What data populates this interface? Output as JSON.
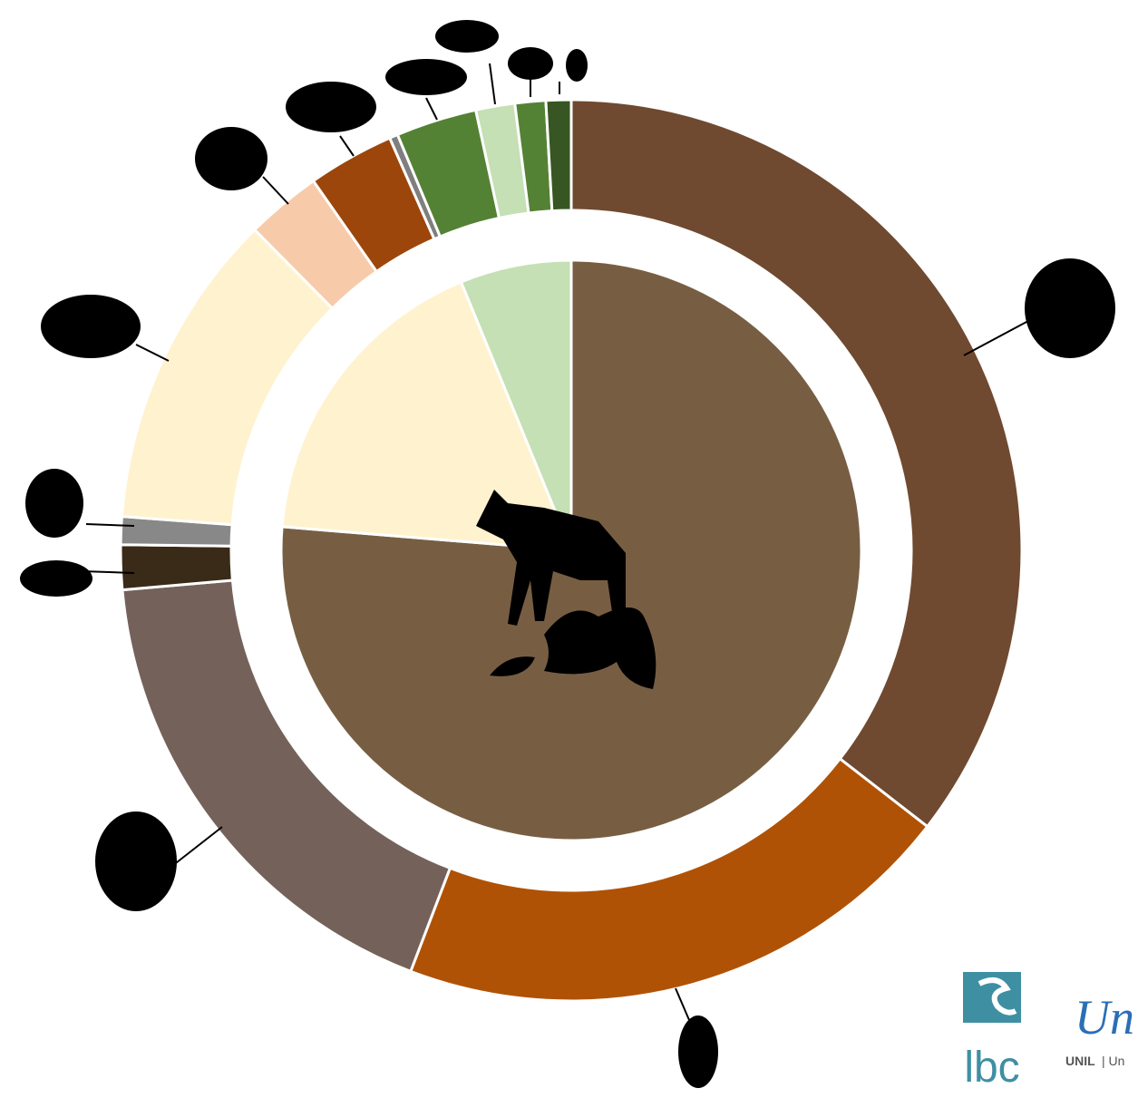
{
  "chart_data": {
    "type": "sunburst",
    "rings": [
      {
        "values": [
          76.3,
          17.5,
          6.2
        ],
        "colors": [
          "#775e43",
          "#fff2cf",
          "#c5e0b4"
        ]
      },
      {
        "values": [
          35.5,
          20.3,
          17.8,
          1.6,
          1.0,
          11.4,
          2.7,
          3.1,
          0.3,
          2.9,
          1.4,
          1.1,
          0.9
        ],
        "colors": [
          "#6f4a30",
          "#b05206",
          "#74625a",
          "#3a2a18",
          "#888888",
          "#fff2cf",
          "#f7cbaa",
          "#9c460c",
          "#7f7f7f",
          "#548235",
          "#c5e0b4",
          "#548235",
          "#375623"
        ]
      }
    ]
  },
  "logos": {
    "lab": "lbc",
    "university": "Un",
    "university_full": "UNIL",
    "university_sub": "| Un"
  }
}
